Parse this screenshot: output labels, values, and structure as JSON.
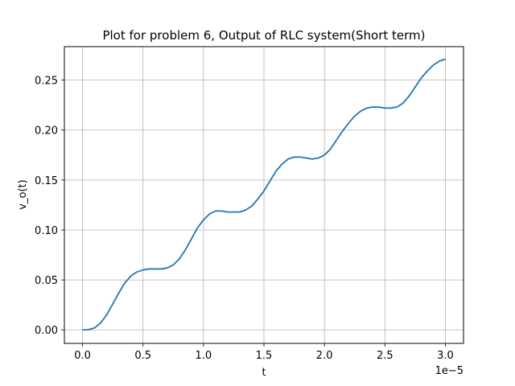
{
  "chart_data": {
    "type": "line",
    "title": "Plot for problem 6, Output of RLC system(Short term)",
    "xlabel": "t",
    "ylabel": "v_o(t)",
    "x_offset_label": "1e−5",
    "xlim": [
      -0.15,
      3.15
    ],
    "ylim": [
      -0.0135,
      0.2835
    ],
    "xticks": [
      0.0,
      0.5,
      1.0,
      1.5,
      2.0,
      2.5,
      3.0
    ],
    "xtick_labels": [
      "0.0",
      "0.5",
      "1.0",
      "1.5",
      "2.0",
      "2.5",
      "3.0"
    ],
    "yticks": [
      0.0,
      0.05,
      0.1,
      0.15,
      0.2,
      0.25
    ],
    "ytick_labels": [
      "0.00",
      "0.05",
      "0.10",
      "0.15",
      "0.20",
      "0.25"
    ],
    "grid": true,
    "line_color": "#1f77b4",
    "series": [
      {
        "x": [
          0.0,
          0.05,
          0.1,
          0.15,
          0.2,
          0.25,
          0.3,
          0.35,
          0.4,
          0.45,
          0.5,
          0.55,
          0.6,
          0.65,
          0.7,
          0.75,
          0.8,
          0.85,
          0.9,
          0.95,
          1.0,
          1.05,
          1.1,
          1.15,
          1.2,
          1.25,
          1.3,
          1.35,
          1.4,
          1.45,
          1.5,
          1.55,
          1.6,
          1.65,
          1.7,
          1.75,
          1.8,
          1.85,
          1.9,
          1.95,
          2.0,
          2.05,
          2.1,
          2.15,
          2.2,
          2.25,
          2.3,
          2.35,
          2.4,
          2.45,
          2.5,
          2.55,
          2.6,
          2.65,
          2.7,
          2.75,
          2.8,
          2.85,
          2.9,
          2.95,
          3.0
        ],
        "values": [
          0.0,
          0.0003,
          0.002,
          0.007,
          0.015,
          0.026,
          0.037,
          0.047,
          0.054,
          0.058,
          0.06,
          0.061,
          0.061,
          0.061,
          0.062,
          0.065,
          0.071,
          0.08,
          0.091,
          0.102,
          0.11,
          0.116,
          0.119,
          0.119,
          0.118,
          0.118,
          0.118,
          0.12,
          0.124,
          0.131,
          0.139,
          0.149,
          0.159,
          0.166,
          0.171,
          0.173,
          0.173,
          0.172,
          0.171,
          0.172,
          0.175,
          0.181,
          0.19,
          0.199,
          0.207,
          0.214,
          0.219,
          0.222,
          0.223,
          0.223,
          0.222,
          0.222,
          0.223,
          0.227,
          0.234,
          0.243,
          0.252,
          0.259,
          0.265,
          0.269,
          0.271
        ]
      }
    ]
  }
}
